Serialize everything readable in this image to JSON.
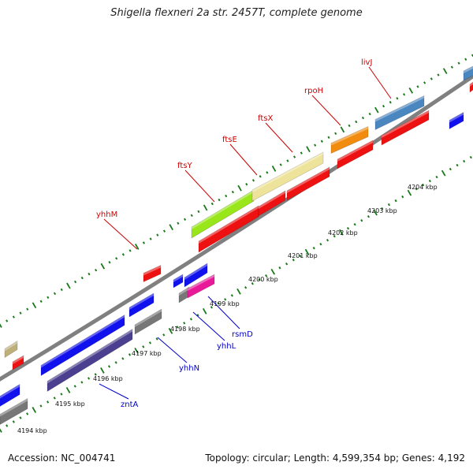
{
  "title": "Shigella flexneri 2a str. 2457T, complete genome",
  "footer": {
    "accession_label": "Accession: NC_004741",
    "stats_label": "Topology: circular; Length: 4,599,354 bp; Genes: 4,192"
  },
  "kbp_labels": [
    "4194 kbp",
    "4195 kbp",
    "4196 kbp",
    "4197 kbp",
    "4198 kbp",
    "4199 kbp",
    "4200 kbp",
    "4201 kbp",
    "4202 kbp",
    "4203 kbp",
    "4204 kbp"
  ],
  "gene_labels": [
    {
      "text": "yhhM",
      "color": "#cc0000"
    },
    {
      "text": "ftsY",
      "color": "#cc0000"
    },
    {
      "text": "ftsE",
      "color": "#cc0000"
    },
    {
      "text": "ftsX",
      "color": "#cc0000"
    },
    {
      "text": "rpoH",
      "color": "#cc0000"
    },
    {
      "text": "livJ",
      "color": "#cc0000"
    },
    {
      "text": "zntA",
      "color": "#0000cc"
    },
    {
      "text": "yhhN",
      "color": "#0000cc"
    },
    {
      "text": "yhhL",
      "color": "#0000cc"
    },
    {
      "text": "rsmD",
      "color": "#0000cc"
    }
  ],
  "colors": {
    "backbone": "#808080",
    "tick": "#1a7a1a",
    "forward_cds": "#ee1111",
    "reverse_cds": "#1111ee",
    "rna_gray": "#777777",
    "purple": "#4b3f8f",
    "green": "#99e61a",
    "khaki": "#eee39a",
    "orange": "#f28c0f",
    "steelblue": "#4a86c0",
    "magenta": "#e81a9a",
    "olive": "#bdb07a"
  }
}
